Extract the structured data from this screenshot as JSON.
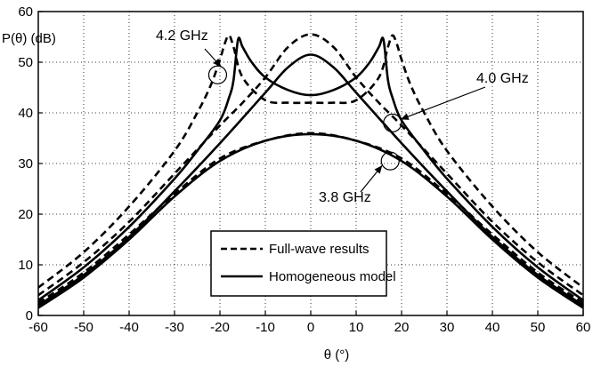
{
  "chart_data": {
    "type": "line",
    "xlabel": "θ (°)",
    "ylabel": "P(θ) (dB)",
    "xlim": [
      -60,
      60
    ],
    "ylim": [
      0,
      60
    ],
    "x_ticks": [
      -60,
      -50,
      -40,
      -30,
      -20,
      -10,
      0,
      10,
      20,
      30,
      40,
      50,
      60
    ],
    "y_ticks": [
      0,
      10,
      20,
      30,
      40,
      50,
      60
    ],
    "grid": true,
    "legend_position": "bottom-right",
    "legend": [
      {
        "label": "Full-wave results",
        "style": "dashed"
      },
      {
        "label": "Homogeneous model",
        "style": "solid"
      }
    ],
    "annotations": [
      "4.2 GHz",
      "4.0 GHz",
      "3.8 GHz"
    ],
    "series": [
      {
        "group": "Full-wave results",
        "annotation": "4.2 GHz",
        "style": "dashed",
        "x": [
          -60,
          -50,
          -40,
          -30,
          -25,
          -22,
          -20,
          -19,
          -18,
          -17,
          -15,
          -10,
          -5,
          0,
          5,
          10,
          15,
          17,
          18,
          19,
          20,
          22,
          25,
          30,
          40,
          50,
          60
        ],
        "y": [
          5.5,
          12.5,
          21.5,
          32.5,
          40,
          45.5,
          50.5,
          53.5,
          55.3,
          53,
          47,
          42.5,
          42,
          42,
          42,
          42.5,
          47,
          53,
          55.3,
          53.5,
          50.5,
          45.5,
          40,
          32.5,
          21.5,
          12.5,
          5.5
        ]
      },
      {
        "group": "Full-wave results",
        "annotation": "4.0 GHz",
        "style": "dashed",
        "x": [
          -60,
          -50,
          -40,
          -30,
          -20,
          -15,
          -10,
          -5,
          0,
          5,
          10,
          15,
          20,
          30,
          40,
          50,
          60
        ],
        "y": [
          4,
          10.5,
          18.5,
          28,
          37.5,
          42,
          47,
          53,
          55.5,
          53,
          47,
          42,
          37.5,
          28,
          18.5,
          10.5,
          4
        ]
      },
      {
        "group": "Full-wave results",
        "annotation": "3.8 GHz",
        "style": "dashed",
        "x": [
          -60,
          -50,
          -40,
          -30,
          -20,
          -10,
          0,
          10,
          20,
          30,
          40,
          50,
          60
        ],
        "y": [
          2.5,
          8.5,
          16,
          24,
          31,
          34.5,
          36,
          34.5,
          31,
          24,
          16,
          8.5,
          2.5
        ]
      },
      {
        "group": "Homogeneous model",
        "annotation": "4.2 GHz",
        "style": "solid",
        "x": [
          -60,
          -50,
          -40,
          -30,
          -25,
          -20,
          -18,
          -17,
          -16,
          -15,
          -13,
          -10,
          -5,
          0,
          5,
          10,
          13,
          15,
          16,
          17,
          18,
          20,
          25,
          30,
          40,
          50,
          60
        ],
        "y": [
          3,
          9.5,
          17.5,
          27,
          32.5,
          38.5,
          43,
          46.5,
          54.5,
          53,
          50,
          47,
          44.5,
          43.5,
          44.5,
          47,
          50,
          53,
          54.5,
          46.5,
          43,
          38.5,
          32.5,
          27,
          17.5,
          9.5,
          3
        ]
      },
      {
        "group": "Homogeneous model",
        "annotation": "4.0 GHz",
        "style": "solid",
        "x": [
          -60,
          -50,
          -40,
          -30,
          -20,
          -10,
          -5,
          0,
          5,
          10,
          20,
          30,
          40,
          50,
          60
        ],
        "y": [
          2,
          8,
          15.5,
          24.5,
          34,
          44,
          49,
          51.5,
          49,
          44,
          34,
          24.5,
          15.5,
          8,
          2
        ]
      },
      {
        "group": "Homogeneous model",
        "annotation": "3.8 GHz",
        "style": "solid",
        "x": [
          -60,
          -50,
          -40,
          -30,
          -20,
          -10,
          0,
          10,
          20,
          30,
          40,
          50,
          60
        ],
        "y": [
          1.5,
          7.5,
          15,
          23.5,
          30.5,
          34.5,
          35.8,
          34.5,
          30.5,
          23.5,
          15,
          7.5,
          1.5
        ]
      }
    ],
    "markers": [
      {
        "name": "circle-4-2ghz",
        "x": -20.5,
        "y": 47.5
      },
      {
        "name": "circle-4-0ghz",
        "x": 18,
        "y": 38
      },
      {
        "name": "circle-3-8ghz",
        "x": 17.5,
        "y": 30.5
      }
    ]
  }
}
